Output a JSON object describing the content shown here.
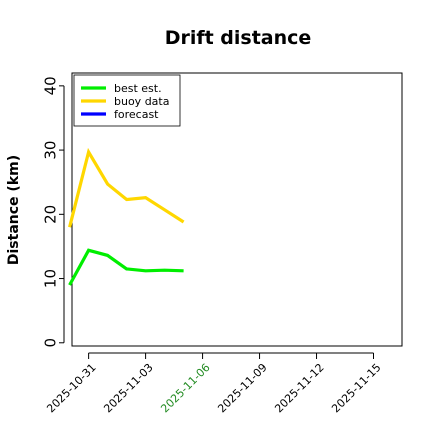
{
  "chart_data": {
    "type": "line",
    "title": "Drift distance",
    "xlabel": "",
    "ylabel": "Distance (km)",
    "ylim": [
      -0.5,
      42
    ],
    "xlim": [
      "2025-10-30T03:00",
      "2025-11-16T12:00"
    ],
    "y_ticks": [
      "0",
      "10",
      "20",
      "30",
      "40"
    ],
    "x_ticks": [
      {
        "date": "2025-10-31",
        "label": "2025-10-31",
        "color": "#000000"
      },
      {
        "date": "2025-11-03",
        "label": "2025-11-03",
        "color": "#000000"
      },
      {
        "date": "2025-11-06",
        "label": "2025-11-06",
        "color": "#228B22"
      },
      {
        "date": "2025-11-09",
        "label": "2025-11-09",
        "color": "#000000"
      },
      {
        "date": "2025-11-12",
        "label": "2025-11-12",
        "color": "#000000"
      },
      {
        "date": "2025-11-15",
        "label": "2025-11-15",
        "color": "#000000"
      }
    ],
    "grid": false,
    "legend": "top-left",
    "series": [
      {
        "name": "best est.",
        "color": "#00ee00",
        "points": [
          {
            "x": "2025-10-30T00:00",
            "y": 9.0
          },
          {
            "x": "2025-10-31T00:00",
            "y": 14.4
          },
          {
            "x": "2025-11-01T00:00",
            "y": 13.6
          },
          {
            "x": "2025-11-02T00:00",
            "y": 11.5
          },
          {
            "x": "2025-11-03T00:00",
            "y": 11.2
          },
          {
            "x": "2025-11-04T00:00",
            "y": 11.3
          },
          {
            "x": "2025-11-05T00:00",
            "y": 11.2
          }
        ]
      },
      {
        "name": "buoy data",
        "color": "#ffd700",
        "points": [
          {
            "x": "2025-10-30T00:00",
            "y": 18.0
          },
          {
            "x": "2025-10-31T00:00",
            "y": 29.7
          },
          {
            "x": "2025-11-01T00:00",
            "y": 24.7
          },
          {
            "x": "2025-11-02T00:00",
            "y": 22.3
          },
          {
            "x": "2025-11-03T00:00",
            "y": 22.6
          },
          {
            "x": "2025-11-04T00:00",
            "y": 20.7
          },
          {
            "x": "2025-11-05T00:00",
            "y": 18.8
          }
        ]
      },
      {
        "name": "forecast",
        "color": "#0000ff",
        "points": []
      }
    ]
  }
}
